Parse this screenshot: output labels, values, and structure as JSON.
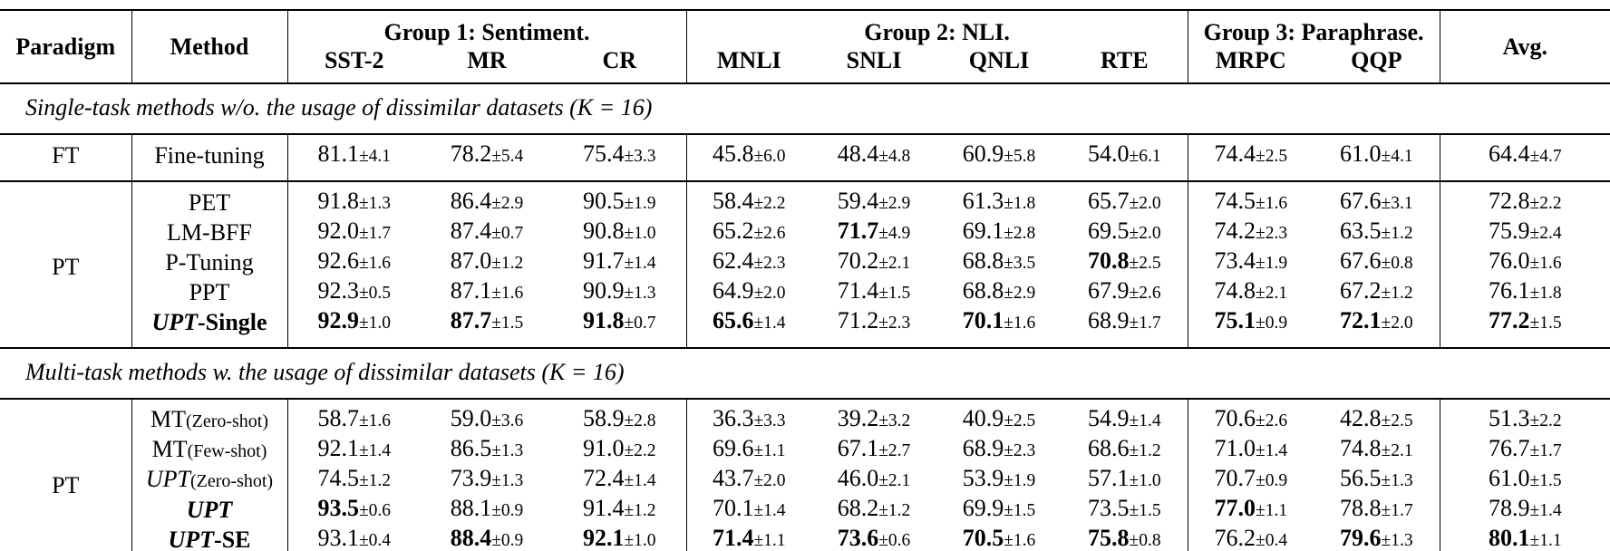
{
  "colors": {
    "text": "#000000",
    "background": "#ffffff",
    "rule": "#000000"
  },
  "table": {
    "header": {
      "paradigm": "Paradigm",
      "method": "Method",
      "groups": [
        {
          "title": "Group 1: Sentiment.",
          "cols": [
            "SST-2",
            "MR",
            "CR"
          ]
        },
        {
          "title": "Group 2: NLI.",
          "cols": [
            "MNLI",
            "SNLI",
            "QNLI",
            "RTE"
          ]
        },
        {
          "title": "Group 3: Paraphrase.",
          "cols": [
            "MRPC",
            "QQP"
          ]
        }
      ],
      "avg": "Avg."
    },
    "sections": [
      {
        "title": "Single-task methods w/o. the usage of dissimilar datasets (K = 16)",
        "blocks": [
          {
            "paradigm": "FT",
            "rows": [
              {
                "method": [
                  {
                    "t": "Fine-tuning",
                    "st": "n"
                  }
                ],
                "cells": [
                  [
                    "81.1",
                    "4.1",
                    0
                  ],
                  [
                    "78.2",
                    "5.4",
                    0
                  ],
                  [
                    "75.4",
                    "3.3",
                    0
                  ],
                  [
                    "45.8",
                    "6.0",
                    0
                  ],
                  [
                    "48.4",
                    "4.8",
                    0
                  ],
                  [
                    "60.9",
                    "5.8",
                    0
                  ],
                  [
                    "54.0",
                    "6.1",
                    0
                  ],
                  [
                    "74.4",
                    "2.5",
                    0
                  ],
                  [
                    "61.0",
                    "4.1",
                    0
                  ],
                  [
                    "64.4",
                    "4.7",
                    0
                  ]
                ]
              }
            ]
          },
          {
            "paradigm": "PT",
            "rows": [
              {
                "method": [
                  {
                    "t": "PET",
                    "st": "n"
                  }
                ],
                "cells": [
                  [
                    "91.8",
                    "1.3",
                    0
                  ],
                  [
                    "86.4",
                    "2.9",
                    0
                  ],
                  [
                    "90.5",
                    "1.9",
                    0
                  ],
                  [
                    "58.4",
                    "2.2",
                    0
                  ],
                  [
                    "59.4",
                    "2.9",
                    0
                  ],
                  [
                    "61.3",
                    "1.8",
                    0
                  ],
                  [
                    "65.7",
                    "2.0",
                    0
                  ],
                  [
                    "74.5",
                    "1.6",
                    0
                  ],
                  [
                    "67.6",
                    "3.1",
                    0
                  ],
                  [
                    "72.8",
                    "2.2",
                    0
                  ]
                ]
              },
              {
                "method": [
                  {
                    "t": "LM-BFF",
                    "st": "n"
                  }
                ],
                "cells": [
                  [
                    "92.0",
                    "1.7",
                    0
                  ],
                  [
                    "87.4",
                    "0.7",
                    0
                  ],
                  [
                    "90.8",
                    "1.0",
                    0
                  ],
                  [
                    "65.2",
                    "2.6",
                    0
                  ],
                  [
                    "71.7",
                    "4.9",
                    1
                  ],
                  [
                    "69.1",
                    "2.8",
                    0
                  ],
                  [
                    "69.5",
                    "2.0",
                    0
                  ],
                  [
                    "74.2",
                    "2.3",
                    0
                  ],
                  [
                    "63.5",
                    "1.2",
                    0
                  ],
                  [
                    "75.9",
                    "2.4",
                    0
                  ]
                ]
              },
              {
                "method": [
                  {
                    "t": "P-Tuning",
                    "st": "n"
                  }
                ],
                "cells": [
                  [
                    "92.6",
                    "1.6",
                    0
                  ],
                  [
                    "87.0",
                    "1.2",
                    0
                  ],
                  [
                    "91.7",
                    "1.4",
                    0
                  ],
                  [
                    "62.4",
                    "2.3",
                    0
                  ],
                  [
                    "70.2",
                    "2.1",
                    0
                  ],
                  [
                    "68.8",
                    "3.5",
                    0
                  ],
                  [
                    "70.8",
                    "2.5",
                    1
                  ],
                  [
                    "73.4",
                    "1.9",
                    0
                  ],
                  [
                    "67.6",
                    "0.8",
                    0
                  ],
                  [
                    "76.0",
                    "1.6",
                    0
                  ]
                ]
              },
              {
                "method": [
                  {
                    "t": "PPT",
                    "st": "n"
                  }
                ],
                "cells": [
                  [
                    "92.3",
                    "0.5",
                    0
                  ],
                  [
                    "87.1",
                    "1.6",
                    0
                  ],
                  [
                    "90.9",
                    "1.3",
                    0
                  ],
                  [
                    "64.9",
                    "2.0",
                    0
                  ],
                  [
                    "71.4",
                    "1.5",
                    0
                  ],
                  [
                    "68.8",
                    "2.9",
                    0
                  ],
                  [
                    "67.9",
                    "2.6",
                    0
                  ],
                  [
                    "74.8",
                    "2.1",
                    0
                  ],
                  [
                    "67.2",
                    "1.2",
                    0
                  ],
                  [
                    "76.1",
                    "1.8",
                    0
                  ]
                ]
              },
              {
                "method": [
                  {
                    "t": "UPT",
                    "st": "bi"
                  },
                  {
                    "t": "-Single",
                    "st": "b"
                  }
                ],
                "cells": [
                  [
                    "92.9",
                    "1.0",
                    1
                  ],
                  [
                    "87.7",
                    "1.5",
                    1
                  ],
                  [
                    "91.8",
                    "0.7",
                    1
                  ],
                  [
                    "65.6",
                    "1.4",
                    1
                  ],
                  [
                    "71.2",
                    "2.3",
                    0
                  ],
                  [
                    "70.1",
                    "1.6",
                    1
                  ],
                  [
                    "68.9",
                    "1.7",
                    0
                  ],
                  [
                    "75.1",
                    "0.9",
                    1
                  ],
                  [
                    "72.1",
                    "2.0",
                    1
                  ],
                  [
                    "77.2",
                    "1.5",
                    1
                  ]
                ]
              }
            ]
          }
        ]
      },
      {
        "title": "Multi-task methods w. the usage of dissimilar datasets (K = 16)",
        "blocks": [
          {
            "paradigm": "PT",
            "rows": [
              {
                "method": [
                  {
                    "t": "MT",
                    "st": "n"
                  },
                  {
                    "t": "(Zero-shot)",
                    "st": "p"
                  }
                ],
                "cells": [
                  [
                    "58.7",
                    "1.6",
                    0
                  ],
                  [
                    "59.0",
                    "3.6",
                    0
                  ],
                  [
                    "58.9",
                    "2.8",
                    0
                  ],
                  [
                    "36.3",
                    "3.3",
                    0
                  ],
                  [
                    "39.2",
                    "3.2",
                    0
                  ],
                  [
                    "40.9",
                    "2.5",
                    0
                  ],
                  [
                    "54.9",
                    "1.4",
                    0
                  ],
                  [
                    "70.6",
                    "2.6",
                    0
                  ],
                  [
                    "42.8",
                    "2.5",
                    0
                  ],
                  [
                    "51.3",
                    "2.2",
                    0
                  ]
                ]
              },
              {
                "method": [
                  {
                    "t": "MT",
                    "st": "n"
                  },
                  {
                    "t": "(Few-shot)",
                    "st": "p"
                  }
                ],
                "cells": [
                  [
                    "92.1",
                    "1.4",
                    0
                  ],
                  [
                    "86.5",
                    "1.3",
                    0
                  ],
                  [
                    "91.0",
                    "2.2",
                    0
                  ],
                  [
                    "69.6",
                    "1.1",
                    0
                  ],
                  [
                    "67.1",
                    "2.7",
                    0
                  ],
                  [
                    "68.9",
                    "2.3",
                    0
                  ],
                  [
                    "68.6",
                    "1.2",
                    0
                  ],
                  [
                    "71.0",
                    "1.4",
                    0
                  ],
                  [
                    "74.8",
                    "2.1",
                    0
                  ],
                  [
                    "76.7",
                    "1.7",
                    0
                  ]
                ]
              },
              {
                "method": [
                  {
                    "t": "UPT",
                    "st": "i"
                  },
                  {
                    "t": "(Zero-shot)",
                    "st": "p"
                  }
                ],
                "cells": [
                  [
                    "74.5",
                    "1.2",
                    0
                  ],
                  [
                    "73.9",
                    "1.3",
                    0
                  ],
                  [
                    "72.4",
                    "1.4",
                    0
                  ],
                  [
                    "43.7",
                    "2.0",
                    0
                  ],
                  [
                    "46.0",
                    "2.1",
                    0
                  ],
                  [
                    "53.9",
                    "1.9",
                    0
                  ],
                  [
                    "57.1",
                    "1.0",
                    0
                  ],
                  [
                    "70.7",
                    "0.9",
                    0
                  ],
                  [
                    "56.5",
                    "1.3",
                    0
                  ],
                  [
                    "61.0",
                    "1.5",
                    0
                  ]
                ]
              },
              {
                "method": [
                  {
                    "t": "UPT",
                    "st": "bi"
                  }
                ],
                "cells": [
                  [
                    "93.5",
                    "0.6",
                    1
                  ],
                  [
                    "88.1",
                    "0.9",
                    0
                  ],
                  [
                    "91.4",
                    "1.2",
                    0
                  ],
                  [
                    "70.1",
                    "1.4",
                    0
                  ],
                  [
                    "68.2",
                    "1.2",
                    0
                  ],
                  [
                    "69.9",
                    "1.5",
                    0
                  ],
                  [
                    "73.5",
                    "1.5",
                    0
                  ],
                  [
                    "77.0",
                    "1.1",
                    1
                  ],
                  [
                    "78.8",
                    "1.7",
                    0
                  ],
                  [
                    "78.9",
                    "1.4",
                    0
                  ]
                ]
              },
              {
                "method": [
                  {
                    "t": "UPT",
                    "st": "bi"
                  },
                  {
                    "t": "-SE",
                    "st": "b"
                  }
                ],
                "cells": [
                  [
                    "93.1",
                    "0.4",
                    0
                  ],
                  [
                    "88.4",
                    "0.9",
                    1
                  ],
                  [
                    "92.1",
                    "1.0",
                    1
                  ],
                  [
                    "71.4",
                    "1.1",
                    1
                  ],
                  [
                    "73.6",
                    "0.6",
                    1
                  ],
                  [
                    "70.5",
                    "1.6",
                    1
                  ],
                  [
                    "75.8",
                    "0.8",
                    1
                  ],
                  [
                    "76.2",
                    "0.4",
                    0
                  ],
                  [
                    "79.6",
                    "1.3",
                    1
                  ],
                  [
                    "80.1",
                    "1.1",
                    1
                  ]
                ]
              }
            ]
          }
        ]
      }
    ]
  }
}
